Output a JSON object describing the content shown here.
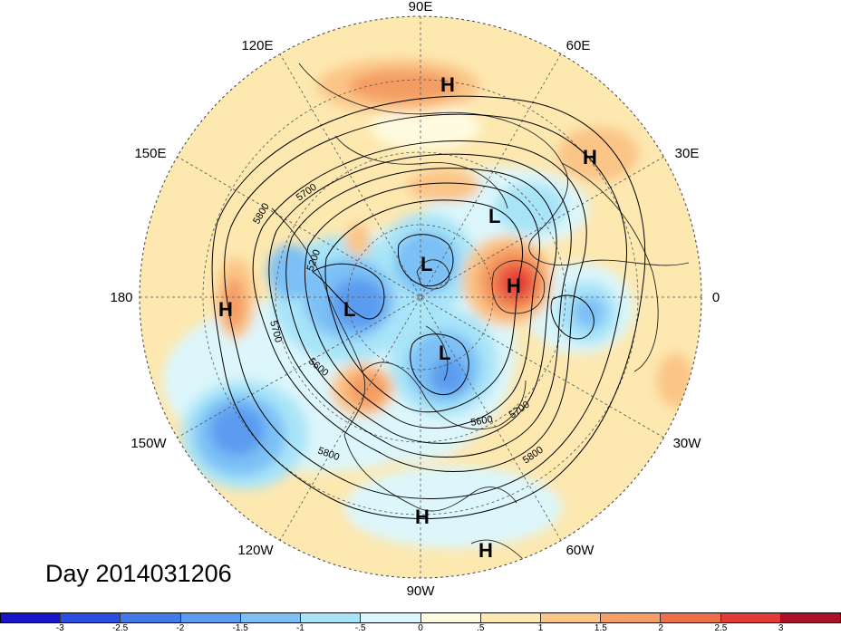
{
  "title": "Day 2014031206",
  "longitude_labels": [
    "90E",
    "60E",
    "30E",
    "0",
    "30W",
    "60W",
    "90W",
    "120W",
    "150W",
    "180",
    "150E",
    "120E"
  ],
  "centers": [
    {
      "type": "H",
      "name": "high-center-east-siberia"
    },
    {
      "type": "H",
      "name": "high-center-central-asia"
    },
    {
      "type": "L",
      "name": "low-center-ural"
    },
    {
      "type": "L",
      "name": "low-center-arctic"
    },
    {
      "type": "H",
      "name": "high-center-europe"
    },
    {
      "type": "L",
      "name": "low-center-bering"
    },
    {
      "type": "H",
      "name": "high-center-pacific"
    },
    {
      "type": "L",
      "name": "low-center-canada"
    },
    {
      "type": "H",
      "name": "high-center-central-america"
    },
    {
      "type": "H",
      "name": "high-center-caribbean"
    }
  ],
  "contour_labels": [
    "5700",
    "5800",
    "5200",
    "5700",
    "5600",
    "5600",
    "5700",
    "5800",
    "5800"
  ],
  "colorbar": {
    "colors": [
      "#1a14c8",
      "#2b4fe0",
      "#3f7ae8",
      "#5c9cf0",
      "#7cc0f5",
      "#a8e4f8",
      "#dcf6fb",
      "#fefbe0",
      "#fde8b0",
      "#fbc587",
      "#f49d64",
      "#ef6e4a",
      "#e23a34",
      "#ad1127"
    ],
    "ticks": [
      "-3",
      "-2.5",
      "-2",
      "-1.5",
      "-1",
      "-.5",
      "0",
      ".5",
      "1",
      "1.5",
      "2",
      "2.5",
      "3"
    ]
  }
}
